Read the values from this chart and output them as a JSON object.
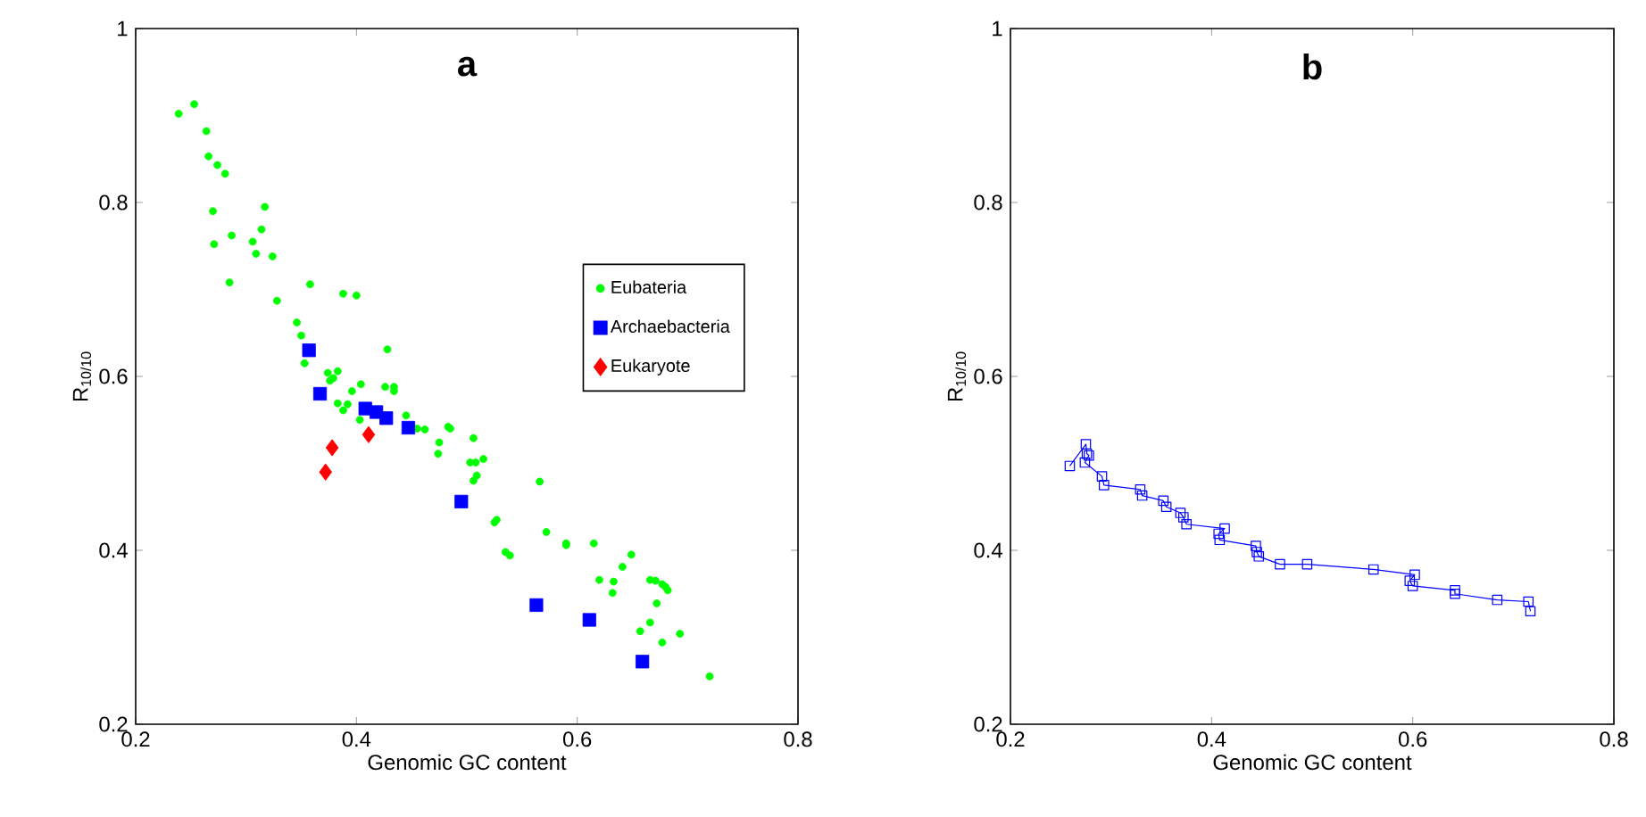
{
  "chart_data": [
    {
      "type": "scatter",
      "title": "a",
      "xlabel": "Genomic GC content",
      "ylabel": "R$_{10/10}$",
      "xlim": [
        0.2,
        0.8
      ],
      "ylim": [
        0.2,
        1
      ],
      "xticks": [
        0.2,
        0.4,
        0.6,
        0.8
      ],
      "yticks": [
        0.2,
        0.4,
        0.6,
        0.8,
        1
      ],
      "legend": "right",
      "series": [
        {
          "name": "Eubateria",
          "color": "#00ff00",
          "marker": "circle",
          "x": [
            0.239,
            0.253,
            0.264,
            0.266,
            0.274,
            0.281,
            0.27,
            0.317,
            0.271,
            0.287,
            0.306,
            0.314,
            0.309,
            0.324,
            0.285,
            0.328,
            0.346,
            0.35,
            0.353,
            0.356,
            0.358,
            0.388,
            0.4,
            0.428,
            0.374,
            0.379,
            0.383,
            0.376,
            0.396,
            0.404,
            0.383,
            0.388,
            0.392,
            0.403,
            0.426,
            0.434,
            0.434,
            0.445,
            0.455,
            0.462,
            0.483,
            0.485,
            0.475,
            0.474,
            0.506,
            0.503,
            0.508,
            0.515,
            0.509,
            0.506,
            0.527,
            0.525,
            0.535,
            0.539,
            0.566,
            0.572,
            0.59,
            0.59,
            0.615,
            0.649,
            0.62,
            0.633,
            0.632,
            0.641,
            0.666,
            0.671,
            0.677,
            0.68,
            0.682,
            0.672,
            0.666,
            0.657,
            0.677,
            0.693,
            0.72
          ],
          "values": [
            0.902,
            0.913,
            0.882,
            0.853,
            0.843,
            0.833,
            0.79,
            0.795,
            0.752,
            0.762,
            0.755,
            0.769,
            0.741,
            0.738,
            0.708,
            0.687,
            0.662,
            0.647,
            0.615,
            null,
            0.706,
            0.695,
            0.693,
            0.631,
            0.604,
            0.598,
            0.606,
            0.595,
            0.583,
            0.591,
            0.569,
            0.561,
            0.568,
            0.55,
            0.588,
            0.588,
            0.583,
            0.555,
            0.54,
            0.539,
            0.542,
            0.54,
            0.524,
            0.511,
            0.529,
            0.501,
            0.501,
            0.505,
            0.486,
            0.48,
            0.435,
            0.432,
            0.398,
            0.394,
            0.479,
            0.421,
            0.408,
            0.406,
            0.408,
            0.395,
            0.366,
            0.364,
            0.351,
            0.381,
            0.366,
            0.365,
            0.361,
            0.358,
            0.354,
            0.339,
            0.317,
            0.307,
            0.294,
            0.304,
            0.255
          ]
        },
        {
          "name": "Archaebacteria",
          "color": "#0000ff",
          "marker": "square",
          "x": [
            0.357,
            0.367,
            0.408,
            0.418,
            0.427,
            0.447,
            0.495,
            0.563,
            0.611,
            0.659
          ],
          "values": [
            0.63,
            0.58,
            0.563,
            0.559,
            0.552,
            0.541,
            0.456,
            0.337,
            0.32,
            0.272
          ]
        },
        {
          "name": "Eukaryote",
          "color": "#ff0000",
          "marker": "diamond",
          "x": [
            0.378,
            0.372,
            0.411
          ],
          "values": [
            0.518,
            0.49,
            0.533
          ]
        }
      ]
    },
    {
      "type": "line",
      "title": "b",
      "xlabel": "Genomic GC content",
      "ylabel": "R$_{10/10}$",
      "xlim": [
        0.2,
        0.8
      ],
      "ylim": [
        0.2,
        1
      ],
      "xticks": [
        0.2,
        0.4,
        0.6,
        0.8
      ],
      "yticks": [
        0.2,
        0.4,
        0.6,
        0.8,
        1
      ],
      "series": [
        {
          "color": "#0000ff",
          "marker": "square",
          "line_style": "solid",
          "x": [
            0.259,
            0.275,
            0.276,
            0.278,
            0.274,
            0.291,
            0.293,
            0.329,
            0.331,
            0.352,
            0.355,
            0.369,
            0.372,
            0.375,
            0.413,
            0.407,
            0.408,
            0.444,
            0.445,
            0.447,
            0.468,
            0.495,
            0.561,
            0.602,
            0.597,
            0.6,
            0.642,
            0.642,
            0.684,
            0.715,
            0.717
          ],
          "values": [
            0.497,
            0.522,
            0.511,
            0.509,
            0.501,
            0.485,
            0.475,
            0.47,
            0.463,
            0.457,
            0.45,
            0.443,
            0.438,
            0.43,
            0.425,
            0.419,
            0.412,
            0.405,
            0.398,
            0.393,
            0.384,
            0.384,
            0.378,
            0.372,
            0.365,
            0.359,
            0.354,
            0.35,
            0.343,
            0.341,
            0.33
          ]
        }
      ]
    }
  ]
}
